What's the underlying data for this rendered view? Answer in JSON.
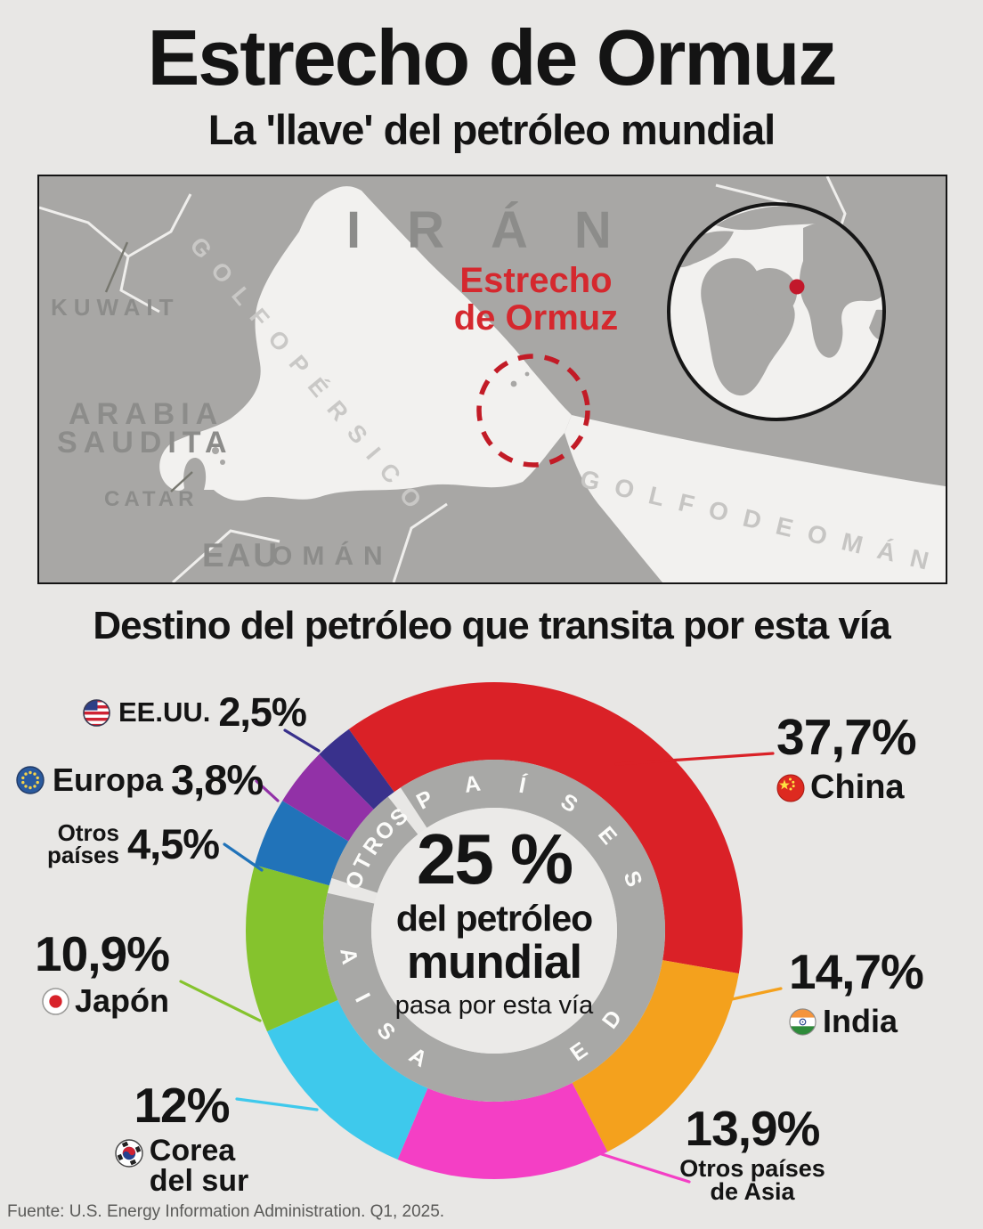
{
  "page": {
    "title": "Estrecho de Ormuz",
    "subtitle": "La 'llave' del petróleo mundial",
    "section_title": "Destino del petróleo que transita por esta vía",
    "source": "Fuente: U.S. Energy Information Administration. Q1, 2025."
  },
  "map": {
    "labels": {
      "iran": "IRÁN",
      "kuwait": "KUWAIT",
      "arabia_line1": "ARABIA",
      "arabia_line2": "SAUDITA",
      "catar": "CATAR",
      "eau": "EAU",
      "oman": "OMÁN",
      "golfo_persico": "G O L F O   P É R S I C O",
      "golfo_de_oman": "G O L F O   D E   O M Á N",
      "strait_line1": "Estrecho",
      "strait_line2": "de Ormuz"
    }
  },
  "chart_data": {
    "type": "pie",
    "subtype": "donut",
    "title": "Destino del petróleo que transita por esta vía",
    "unit": "%",
    "start_angle_deg": -35.8,
    "center_label": {
      "value": "25 %",
      "line2": "del petróleo",
      "line3": "mundial",
      "line4": "pasa por esta vía"
    },
    "ring_groups": [
      {
        "label": "PAÍSES DE ASIA",
        "segment_indexes": [
          0,
          1,
          2,
          3,
          4
        ]
      },
      {
        "label": "OTROS",
        "segment_indexes": [
          5,
          6,
          7
        ]
      }
    ],
    "segments": [
      {
        "name": "China",
        "display_value": "37,7%",
        "value": 37.7,
        "color": "#da2127",
        "flag": "china"
      },
      {
        "name": "India",
        "display_value": "14,7%",
        "value": 14.7,
        "color": "#f4a11d",
        "flag": "india"
      },
      {
        "name": "Otros países de Asia",
        "name_lines": [
          "Otros países",
          "de Asia"
        ],
        "display_value": "13,9%",
        "value": 13.9,
        "color": "#f43fc5",
        "flag": null
      },
      {
        "name": "Corea del sur",
        "name_lines": [
          "Corea",
          "del sur"
        ],
        "display_value": "12%",
        "value": 12,
        "color": "#3ec9ec",
        "flag": "south-korea"
      },
      {
        "name": "Japón",
        "display_value": "10,9%",
        "value": 10.9,
        "color": "#85c32d",
        "flag": "japan"
      },
      {
        "name": "Otros países",
        "name_lines": [
          "Otros",
          "países"
        ],
        "display_value": "4,5%",
        "value": 4.5,
        "color": "#2173b9",
        "flag": null
      },
      {
        "name": "Europa",
        "display_value": "3,8%",
        "value": 3.8,
        "color": "#9231a7",
        "flag": "europe"
      },
      {
        "name": "EE.UU.",
        "display_value": "2,5%",
        "value": 2.5,
        "color": "#39318c",
        "flag": "usa"
      }
    ]
  }
}
